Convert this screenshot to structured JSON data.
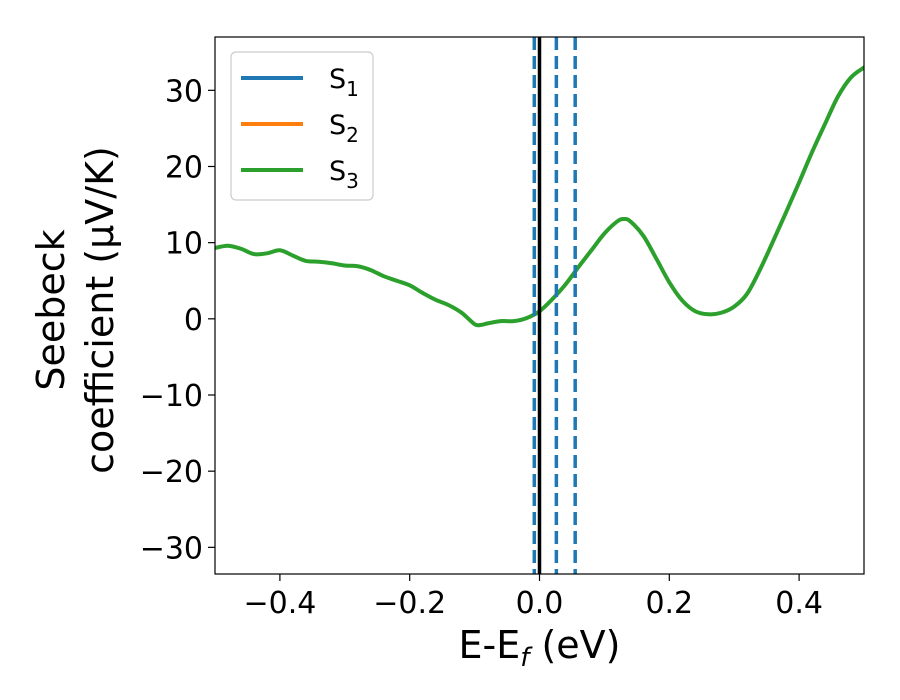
{
  "chart_data": {
    "type": "line",
    "xlabel": "E-E",
    "xlabel_sub": "f",
    "xlabel_unit": " (eV)",
    "ylabel_line1": "Seebeck",
    "ylabel_line2": "coefficient  (μV/K)",
    "xlim": [
      -0.5,
      0.5
    ],
    "ylim": [
      -33.5,
      37
    ],
    "xticks": [
      -0.4,
      -0.2,
      0.0,
      0.2,
      0.4
    ],
    "xtick_labels": [
      "−0.4",
      "−0.2",
      "0.0",
      "0.2",
      "0.4"
    ],
    "yticks": [
      -30,
      -20,
      -10,
      0,
      10,
      20,
      30
    ],
    "ytick_labels": [
      "−30",
      "−20",
      "−10",
      "0",
      "10",
      "20",
      "30"
    ],
    "grid": false,
    "legend_position": "top-left",
    "legend": [
      {
        "base": "S",
        "sub": "1",
        "color": "#1f77b4"
      },
      {
        "base": "S",
        "sub": "2",
        "color": "#ff7f0e"
      },
      {
        "base": "S",
        "sub": "3",
        "color": "#2ca02c"
      }
    ],
    "fermi_line": {
      "x": 0.0,
      "color": "#000000",
      "style": "solid"
    },
    "dashed_lines": {
      "x": [
        -0.008,
        0.026,
        0.055
      ],
      "color": "#1f77b4",
      "style": "dashed"
    },
    "series": [
      {
        "name": "S1",
        "color": "#1f77b4",
        "visible": false,
        "x": [],
        "y": []
      },
      {
        "name": "S2",
        "color": "#ff7f0e",
        "visible": false,
        "x": [],
        "y": []
      },
      {
        "name": "S3",
        "color": "#2ca02c",
        "visible": true,
        "x": [
          -0.5,
          -0.48,
          -0.46,
          -0.44,
          -0.42,
          -0.4,
          -0.38,
          -0.36,
          -0.34,
          -0.32,
          -0.3,
          -0.28,
          -0.26,
          -0.24,
          -0.22,
          -0.2,
          -0.18,
          -0.16,
          -0.14,
          -0.12,
          -0.1,
          -0.09,
          -0.08,
          -0.06,
          -0.04,
          -0.02,
          0.0,
          0.02,
          0.04,
          0.06,
          0.08,
          0.1,
          0.12,
          0.13,
          0.14,
          0.16,
          0.18,
          0.2,
          0.22,
          0.24,
          0.26,
          0.28,
          0.3,
          0.32,
          0.34,
          0.36,
          0.38,
          0.4,
          0.42,
          0.44,
          0.46,
          0.48,
          0.5
        ],
        "y": [
          9.3,
          9.6,
          9.2,
          8.5,
          8.6,
          9.0,
          8.3,
          7.6,
          7.5,
          7.3,
          7.0,
          6.9,
          6.4,
          5.6,
          5.0,
          4.4,
          3.4,
          2.5,
          1.8,
          0.8,
          -0.7,
          -0.8,
          -0.6,
          -0.3,
          -0.3,
          0.1,
          1.0,
          2.6,
          4.5,
          6.8,
          9.0,
          11.2,
          12.8,
          13.1,
          12.8,
          10.9,
          7.9,
          4.8,
          2.4,
          1.0,
          0.6,
          0.8,
          1.6,
          3.3,
          6.5,
          10.2,
          14.0,
          17.9,
          21.9,
          25.6,
          29.2,
          31.7,
          33.0
        ]
      }
    ]
  }
}
